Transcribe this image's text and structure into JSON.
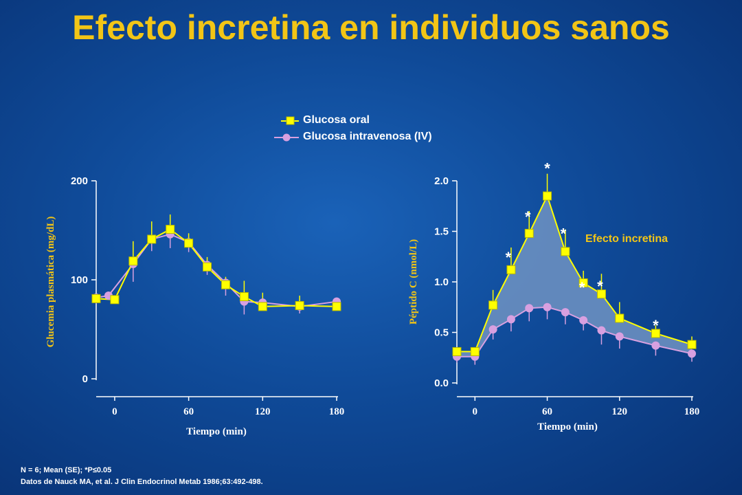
{
  "title": "Efecto incretina en individuos sanos",
  "legend": {
    "oral": "Glucosa oral",
    "iv": "Glucosa intravenosa (IV)"
  },
  "footnotes": {
    "line1": "N = 6; Mean (SE); *P≤0.05",
    "line2": "Datos de Nauck MA, et al. J Clin Endocrinol Metab 1986;63:492-498."
  },
  "colors": {
    "oral": "#ffff00",
    "iv": "#d8a0e0",
    "title": "#f2c516",
    "shade": "#6a8fc0"
  },
  "chart_data": [
    {
      "type": "line",
      "ylabel": "Glucemia plasmática (mg/dL)",
      "xlabel": "Tiempo (min)",
      "xlim": [
        -15,
        180
      ],
      "ylim": [
        0,
        200
      ],
      "xticks": [
        0,
        60,
        120,
        180
      ],
      "yticks": [
        0,
        100,
        200
      ],
      "ytick_labels": [
        "0",
        "100",
        "200"
      ],
      "series": [
        {
          "name": "Glucosa oral",
          "marker": "square",
          "x": [
            -15,
            0,
            15,
            30,
            45,
            60,
            75,
            90,
            105,
            120,
            150,
            180
          ],
          "y": [
            81,
            80,
            119,
            141,
            151,
            137,
            113,
            95,
            83,
            73,
            74,
            73
          ],
          "err": [
            0,
            0,
            20,
            18,
            15,
            10,
            10,
            8,
            16,
            14,
            10,
            0
          ]
        },
        {
          "name": "Glucosa intravenosa (IV)",
          "marker": "circle",
          "x": [
            -15,
            -5,
            15,
            30,
            45,
            60,
            75,
            90,
            105,
            120,
            150,
            180
          ],
          "y": [
            82,
            84,
            116,
            141,
            146,
            138,
            115,
            97,
            78,
            77,
            73,
            78
          ],
          "err": [
            6,
            0,
            18,
            12,
            14,
            10,
            10,
            13,
            13,
            0,
            7,
            5
          ]
        }
      ]
    },
    {
      "type": "line",
      "ylabel": "Péptido C (nmol/L)",
      "xlabel": "Tiempo (min)",
      "xlim": [
        -15,
        180
      ],
      "ylim": [
        0,
        2.0
      ],
      "xticks": [
        0,
        60,
        120,
        180
      ],
      "yticks": [
        0,
        0.5,
        1.0,
        1.5,
        2.0
      ],
      "ytick_labels": [
        "0.0",
        "0.5",
        "1.0",
        "1.5",
        "2.0"
      ],
      "annotation": "Efecto incretina",
      "significance_marker": "*",
      "significant_x": [
        30,
        45,
        60,
        75,
        90,
        105,
        150
      ],
      "series": [
        {
          "name": "Glucosa oral",
          "marker": "square",
          "x": [
            -15,
            0,
            15,
            30,
            45,
            60,
            75,
            90,
            105,
            120,
            150,
            180
          ],
          "y": [
            0.31,
            0.31,
            0.77,
            1.12,
            1.48,
            1.85,
            1.3,
            0.99,
            0.88,
            0.64,
            0.49,
            0.38
          ],
          "err": [
            0,
            0,
            0.15,
            0.22,
            0.22,
            0.22,
            0.22,
            0.12,
            0.2,
            0.16,
            0.08,
            0.08
          ]
        },
        {
          "name": "Glucosa intravenosa (IV)",
          "marker": "circle",
          "x": [
            -15,
            0,
            15,
            30,
            45,
            60,
            75,
            90,
            105,
            120,
            150,
            180
          ],
          "y": [
            0.26,
            0.26,
            0.53,
            0.63,
            0.74,
            0.75,
            0.7,
            0.62,
            0.52,
            0.46,
            0.37,
            0.29
          ],
          "err": [
            0.06,
            0.08,
            0.1,
            0.12,
            0.13,
            0.12,
            0.12,
            0.1,
            0.14,
            0.12,
            0.1,
            0.08
          ]
        }
      ]
    }
  ]
}
